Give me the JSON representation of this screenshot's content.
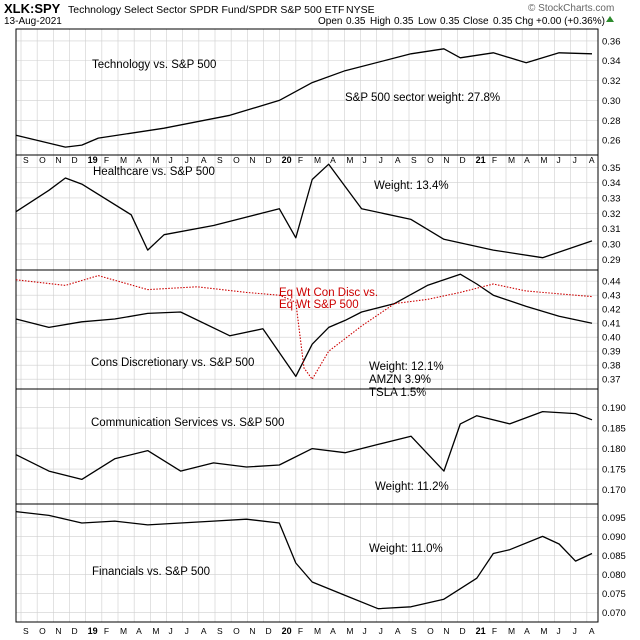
{
  "header": {
    "symbol": "XLK:SPY",
    "name": "Technology Select Sector SPDR Fund/SPDR S&P 500 ETF",
    "exchange": "NYSE",
    "date": "13-Aug-2021",
    "open_label": "Open",
    "open": "0.35",
    "high_label": "High",
    "high": "0.35",
    "low_label": "Low",
    "low": "0.35",
    "close_label": "Close",
    "close": "0.35",
    "chg_label": "Chg",
    "chg": "+0.00 (+0.36%)",
    "watermark": "© StockCharts.com"
  },
  "x_axis": {
    "ticks": [
      "S",
      "O",
      "N",
      "D",
      "19",
      "F",
      "M",
      "A",
      "M",
      "J",
      "J",
      "A",
      "S",
      "O",
      "N",
      "D",
      "20",
      "F",
      "M",
      "A",
      "M",
      "J",
      "J",
      "A",
      "S",
      "O",
      "N",
      "D",
      "21",
      "F",
      "M",
      "A",
      "M",
      "J",
      "J",
      "A"
    ],
    "year_ticks": [
      "19",
      "20",
      "21"
    ]
  },
  "chart_data": [
    {
      "type": "line",
      "panel": "technology",
      "label": "Technology vs. S&P 500",
      "annotation": "S&P 500 sector weight: 27.8%",
      "yticks": [
        0.26,
        0.28,
        0.3,
        0.32,
        0.34,
        0.36
      ],
      "ylim": [
        0.245,
        0.372
      ],
      "series": [
        {
          "x": [
            0,
            3,
            4,
            5,
            9,
            13,
            16,
            18,
            20,
            24,
            26,
            27,
            29,
            31,
            33,
            35
          ],
          "y": [
            0.265,
            0.253,
            0.255,
            0.262,
            0.272,
            0.285,
            0.3,
            0.318,
            0.33,
            0.347,
            0.352,
            0.343,
            0.348,
            0.338,
            0.348,
            0.347
          ]
        }
      ]
    },
    {
      "type": "line",
      "panel": "healthcare",
      "label": "Healthcare vs. S&P 500",
      "annotation": "Weight: 13.4%",
      "yticks": [
        0.29,
        0.3,
        0.31,
        0.32,
        0.33,
        0.34,
        0.35
      ],
      "ylim": [
        0.283,
        0.358
      ],
      "series": [
        {
          "x": [
            0,
            2,
            3,
            4,
            7,
            8,
            9,
            12,
            16,
            17,
            18,
            19,
            21,
            24,
            26,
            29,
            32,
            35
          ],
          "y": [
            0.321,
            0.335,
            0.343,
            0.339,
            0.319,
            0.296,
            0.306,
            0.312,
            0.323,
            0.304,
            0.342,
            0.352,
            0.323,
            0.316,
            0.303,
            0.296,
            0.291,
            0.302
          ]
        }
      ]
    },
    {
      "type": "line",
      "panel": "cons-discretionary",
      "label": "Cons Discretionary vs. S&P 500",
      "annotation": [
        "Weight: 12.1%",
        "AMZN 3.9%",
        "TSLA 1.5%"
      ],
      "red_label": [
        "Eq Wt Con Disc vs.",
        "Eq Wt S&P 500"
      ],
      "yticks": [
        0.37,
        0.38,
        0.39,
        0.4,
        0.41,
        0.42,
        0.43,
        0.44
      ],
      "ylim": [
        0.363,
        0.448
      ],
      "series": [
        {
          "name": "Cons Discretionary vs. S&P 500",
          "x": [
            0,
            2,
            4,
            6,
            8,
            10,
            13,
            15,
            17,
            18,
            19,
            20,
            21,
            23,
            25,
            27,
            28,
            29,
            31,
            33,
            35
          ],
          "y": [
            0.413,
            0.407,
            0.411,
            0.413,
            0.417,
            0.418,
            0.401,
            0.406,
            0.372,
            0.395,
            0.407,
            0.412,
            0.418,
            0.424,
            0.437,
            0.445,
            0.438,
            0.43,
            0.422,
            0.415,
            0.41
          ]
        },
        {
          "name": "Eq Wt Con Disc vs. Eq Wt S&P 500",
          "x": [
            0,
            3,
            5,
            8,
            11,
            14,
            16,
            17,
            17.5,
            18,
            19,
            21,
            23,
            25,
            27,
            29,
            31,
            33,
            35
          ],
          "y": [
            0.441,
            0.437,
            0.444,
            0.434,
            0.436,
            0.432,
            0.43,
            0.425,
            0.378,
            0.37,
            0.39,
            0.408,
            0.424,
            0.427,
            0.432,
            0.438,
            0.433,
            0.431,
            0.429
          ]
        }
      ]
    },
    {
      "type": "line",
      "panel": "communication-services",
      "label": "Communication Services vs. S&P 500",
      "annotation": "Weight: 11.2%",
      "yticks": [
        0.17,
        0.175,
        0.18,
        0.185,
        0.19
      ],
      "ylim": [
        0.1665,
        0.1945
      ],
      "series": [
        {
          "x": [
            0,
            2,
            4,
            6,
            8,
            10,
            12,
            14,
            16,
            18,
            20,
            22,
            24,
            26,
            27,
            28,
            30,
            32,
            34,
            35
          ],
          "y": [
            0.1785,
            0.1745,
            0.1725,
            0.1775,
            0.1795,
            0.1745,
            0.1765,
            0.1755,
            0.176,
            0.18,
            0.179,
            0.181,
            0.183,
            0.1745,
            0.186,
            0.188,
            0.186,
            0.189,
            0.1885,
            0.187
          ]
        }
      ]
    },
    {
      "type": "line",
      "panel": "financials",
      "label": "Financials vs. S&P 500",
      "annotation": "Weight: 11.0%",
      "yticks": [
        0.07,
        0.075,
        0.08,
        0.085,
        0.09,
        0.095
      ],
      "ylim": [
        0.0675,
        0.0985
      ],
      "series": [
        {
          "x": [
            0,
            2,
            4,
            6,
            8,
            10,
            12,
            14,
            16,
            17,
            18,
            20,
            22,
            24,
            26,
            28,
            29,
            30,
            32,
            33,
            34,
            35
          ],
          "y": [
            0.0965,
            0.0955,
            0.0935,
            0.094,
            0.093,
            0.0935,
            0.094,
            0.0945,
            0.0935,
            0.083,
            0.078,
            0.0745,
            0.071,
            0.0715,
            0.0735,
            0.079,
            0.0855,
            0.0865,
            0.09,
            0.088,
            0.0835,
            0.0855
          ]
        }
      ]
    }
  ]
}
